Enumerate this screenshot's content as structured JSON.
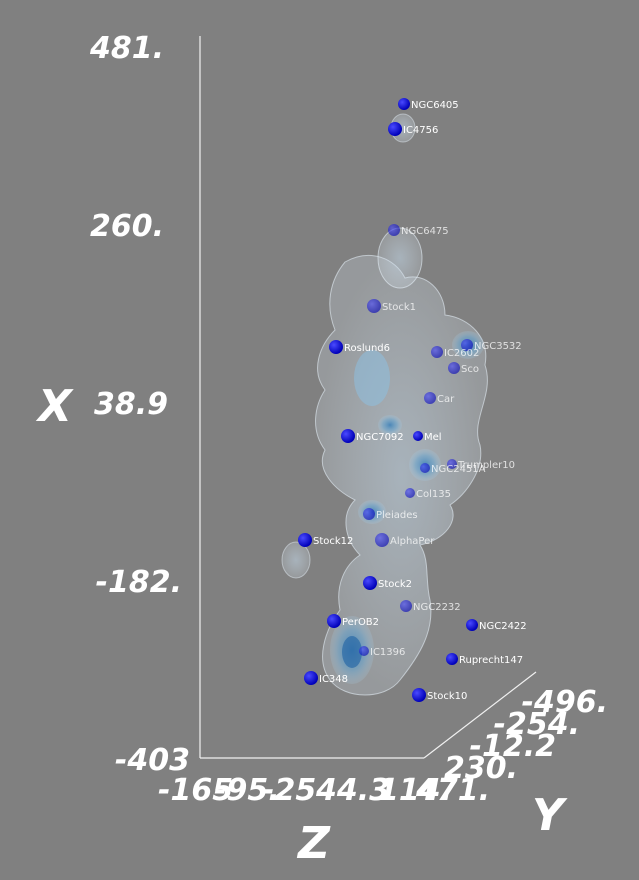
{
  "chart_data": {
    "type": "scatter",
    "title": "",
    "axes": {
      "x": {
        "label": "X",
        "ticks": [
          "481.",
          "260.",
          "38.9",
          "-182.",
          "-403"
        ]
      },
      "y": {
        "label": "Y",
        "ticks": [
          "-496.",
          "-254.",
          "-12.2",
          "230.",
          "471."
        ]
      },
      "z": {
        "label": "Z",
        "ticks": [
          "-165",
          "-95.",
          "-25",
          "44.3",
          "114."
        ]
      }
    },
    "clusters": [
      {
        "name": "NGC6405",
        "depth": "front"
      },
      {
        "name": "IC4756",
        "depth": "front"
      },
      {
        "name": "NGC6475",
        "depth": "inside"
      },
      {
        "name": "Stock1",
        "depth": "inside"
      },
      {
        "name": "Roslund6",
        "depth": "front"
      },
      {
        "name": "NGC3532",
        "depth": "inside"
      },
      {
        "name": "IC2602",
        "depth": "inside"
      },
      {
        "name": "Sco",
        "depth": "inside"
      },
      {
        "name": "Car",
        "depth": "inside"
      },
      {
        "name": "NGC7092",
        "depth": "front"
      },
      {
        "name": "Mel",
        "depth": "front"
      },
      {
        "name": "Trumpler10",
        "depth": "inside"
      },
      {
        "name": "NGC2451A",
        "depth": "inside"
      },
      {
        "name": "Col135",
        "depth": "inside"
      },
      {
        "name": "Pleiades",
        "depth": "inside"
      },
      {
        "name": "Stock12",
        "depth": "front"
      },
      {
        "name": "AlphaPer",
        "depth": "inside"
      },
      {
        "name": "Stock2",
        "depth": "front"
      },
      {
        "name": "NGC2232",
        "depth": "inside"
      },
      {
        "name": "NGC2422",
        "depth": "front"
      },
      {
        "name": "PerOB2",
        "depth": "front"
      },
      {
        "name": "IC1396",
        "depth": "inside"
      },
      {
        "name": "Ruprecht147",
        "depth": "front"
      },
      {
        "name": "IC348",
        "depth": "front"
      },
      {
        "name": "Stock10",
        "depth": "front"
      }
    ]
  }
}
